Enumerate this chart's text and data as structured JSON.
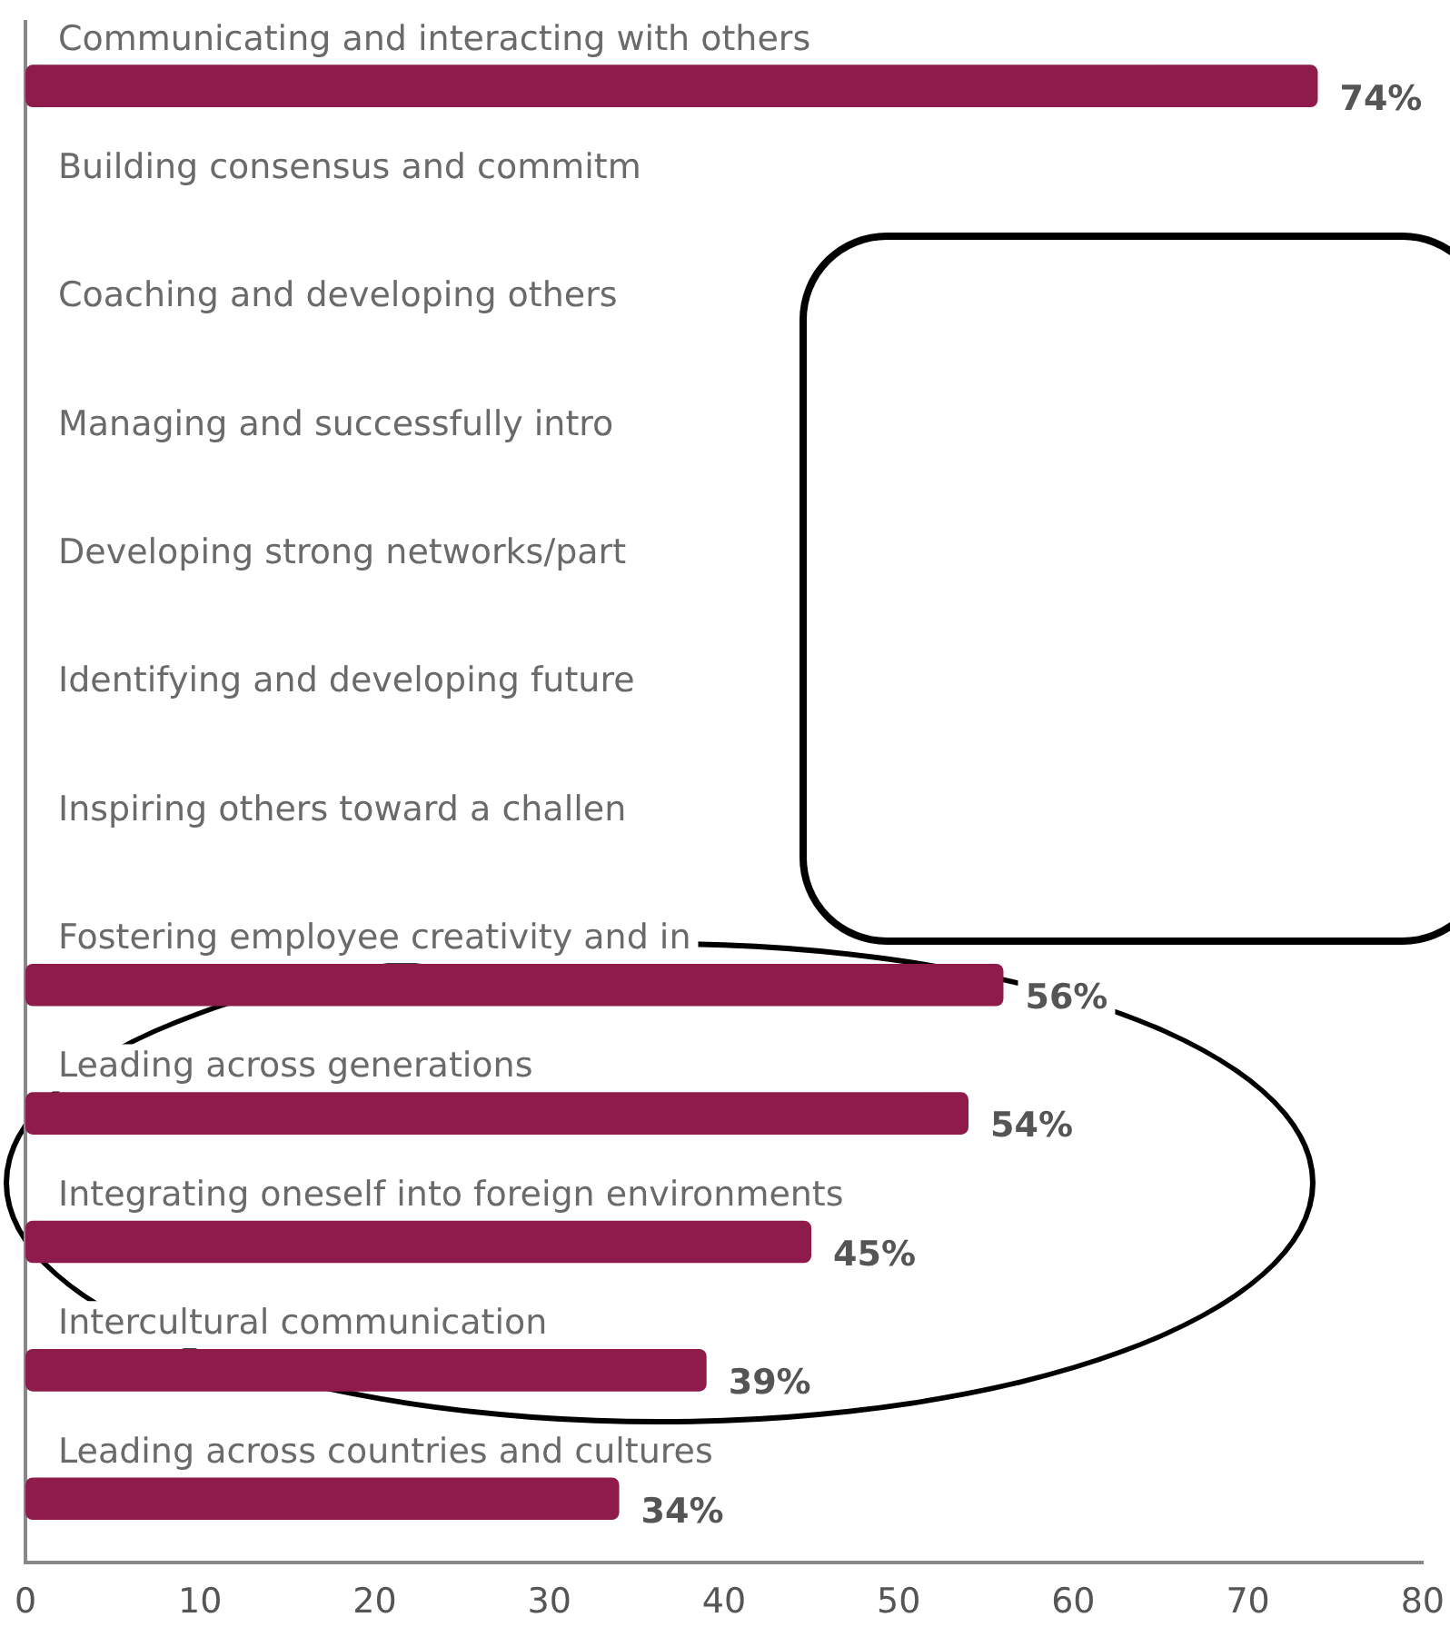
{
  "chart_data": {
    "type": "bar",
    "orientation": "horizontal",
    "categories": [
      "Communicating and interacting with others",
      "Building consensus and commitm",
      "Coaching and developing others",
      "Managing and successfully intro",
      "Developing strong networks/part",
      "Identifying and developing future",
      "Inspiring others toward a challen",
      "Fostering employee creativity and in",
      "Leading across generations",
      "Integrating oneself into foreign environments",
      "Intercultural communication",
      "Leading across countries and cultures"
    ],
    "values": [
      74,
      null,
      null,
      null,
      null,
      null,
      null,
      56,
      54,
      45,
      39,
      34
    ],
    "value_labels": [
      "74%",
      null,
      null,
      null,
      null,
      null,
      null,
      "56%",
      "54%",
      "45%",
      "39%",
      "34%"
    ],
    "color": "#8e1b4b",
    "xlim": [
      0,
      80
    ],
    "xticks": [
      0,
      10,
      20,
      30,
      40,
      50,
      60,
      70,
      80
    ],
    "grid": false,
    "legend": false
  }
}
